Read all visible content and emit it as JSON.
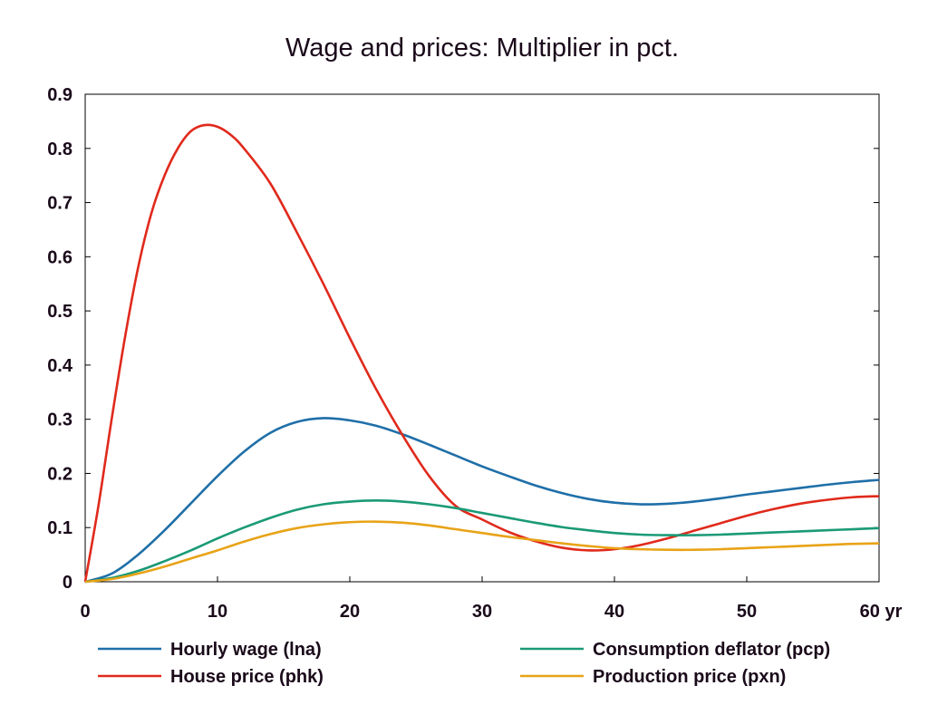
{
  "chart_data": {
    "type": "line",
    "title": "Wage and prices: Multiplier in pct.",
    "x_unit_label": "yr",
    "xlim": [
      0,
      60
    ],
    "ylim": [
      0,
      0.9
    ],
    "x_ticks": [
      0,
      10,
      20,
      30,
      40,
      50,
      60
    ],
    "x_tick_labels": [
      "0",
      "10",
      "20",
      "30",
      "40",
      "50",
      "60 yr"
    ],
    "y_ticks": [
      0,
      0.1,
      0.2,
      0.3,
      0.4,
      0.5,
      0.6,
      0.7,
      0.8,
      0.9
    ],
    "y_tick_labels": [
      "0",
      "0.1",
      "0.2",
      "0.3",
      "0.4",
      "0.5",
      "0.6",
      "0.7",
      "0.8",
      "0.9"
    ],
    "grid": false,
    "legend_position": "bottom",
    "series": [
      {
        "name": "Hourly wage (lna)",
        "color": "#1f6fa8",
        "x": [
          0,
          2,
          4,
          6,
          8,
          10,
          12,
          14,
          16,
          18,
          20,
          22,
          24,
          26,
          28,
          30,
          32,
          34,
          36,
          38,
          40,
          42,
          44,
          46,
          48,
          50,
          52,
          54,
          56,
          58,
          60
        ],
        "y": [
          0,
          0.015,
          0.05,
          0.095,
          0.145,
          0.195,
          0.24,
          0.275,
          0.295,
          0.302,
          0.298,
          0.288,
          0.272,
          0.253,
          0.233,
          0.213,
          0.195,
          0.178,
          0.164,
          0.153,
          0.146,
          0.143,
          0.144,
          0.148,
          0.154,
          0.161,
          0.167,
          0.173,
          0.179,
          0.184,
          0.188
        ]
      },
      {
        "name": "House price (phk)",
        "color": "#e02a1c",
        "x": [
          0,
          1,
          2,
          3,
          4,
          5,
          6,
          7,
          8,
          9,
          10,
          11,
          12,
          14,
          16,
          18,
          20,
          22,
          24,
          26,
          28,
          30,
          32,
          34,
          36,
          38,
          40,
          42,
          44,
          46,
          48,
          50,
          52,
          54,
          56,
          58,
          60
        ],
        "y": [
          0,
          0.14,
          0.3,
          0.45,
          0.58,
          0.68,
          0.75,
          0.8,
          0.832,
          0.843,
          0.84,
          0.825,
          0.8,
          0.735,
          0.645,
          0.55,
          0.45,
          0.355,
          0.27,
          0.195,
          0.14,
          0.115,
          0.092,
          0.075,
          0.063,
          0.058,
          0.06,
          0.068,
          0.08,
          0.094,
          0.108,
          0.122,
          0.134,
          0.144,
          0.151,
          0.156,
          0.158
        ]
      },
      {
        "name": "Consumption deflator (pcp)",
        "color": "#1a9a76",
        "x": [
          0,
          2,
          4,
          6,
          8,
          10,
          12,
          14,
          16,
          18,
          20,
          22,
          24,
          26,
          28,
          30,
          32,
          34,
          36,
          38,
          40,
          42,
          44,
          46,
          48,
          50,
          52,
          54,
          56,
          58,
          60
        ],
        "y": [
          0,
          0.007,
          0.02,
          0.038,
          0.058,
          0.08,
          0.1,
          0.118,
          0.133,
          0.143,
          0.148,
          0.15,
          0.148,
          0.143,
          0.136,
          0.127,
          0.118,
          0.109,
          0.101,
          0.095,
          0.09,
          0.087,
          0.086,
          0.086,
          0.087,
          0.089,
          0.091,
          0.093,
          0.095,
          0.097,
          0.099
        ]
      },
      {
        "name": "Production price (pxn)",
        "color": "#e8a317",
        "x": [
          0,
          2,
          4,
          6,
          8,
          10,
          12,
          14,
          16,
          18,
          20,
          22,
          24,
          26,
          28,
          30,
          32,
          34,
          36,
          38,
          40,
          42,
          44,
          46,
          48,
          50,
          52,
          54,
          56,
          58,
          60
        ],
        "y": [
          0,
          0.005,
          0.015,
          0.028,
          0.043,
          0.058,
          0.074,
          0.088,
          0.099,
          0.106,
          0.11,
          0.111,
          0.109,
          0.104,
          0.097,
          0.09,
          0.083,
          0.077,
          0.071,
          0.066,
          0.062,
          0.06,
          0.059,
          0.059,
          0.06,
          0.062,
          0.064,
          0.066,
          0.068,
          0.07,
          0.071
        ]
      }
    ]
  }
}
